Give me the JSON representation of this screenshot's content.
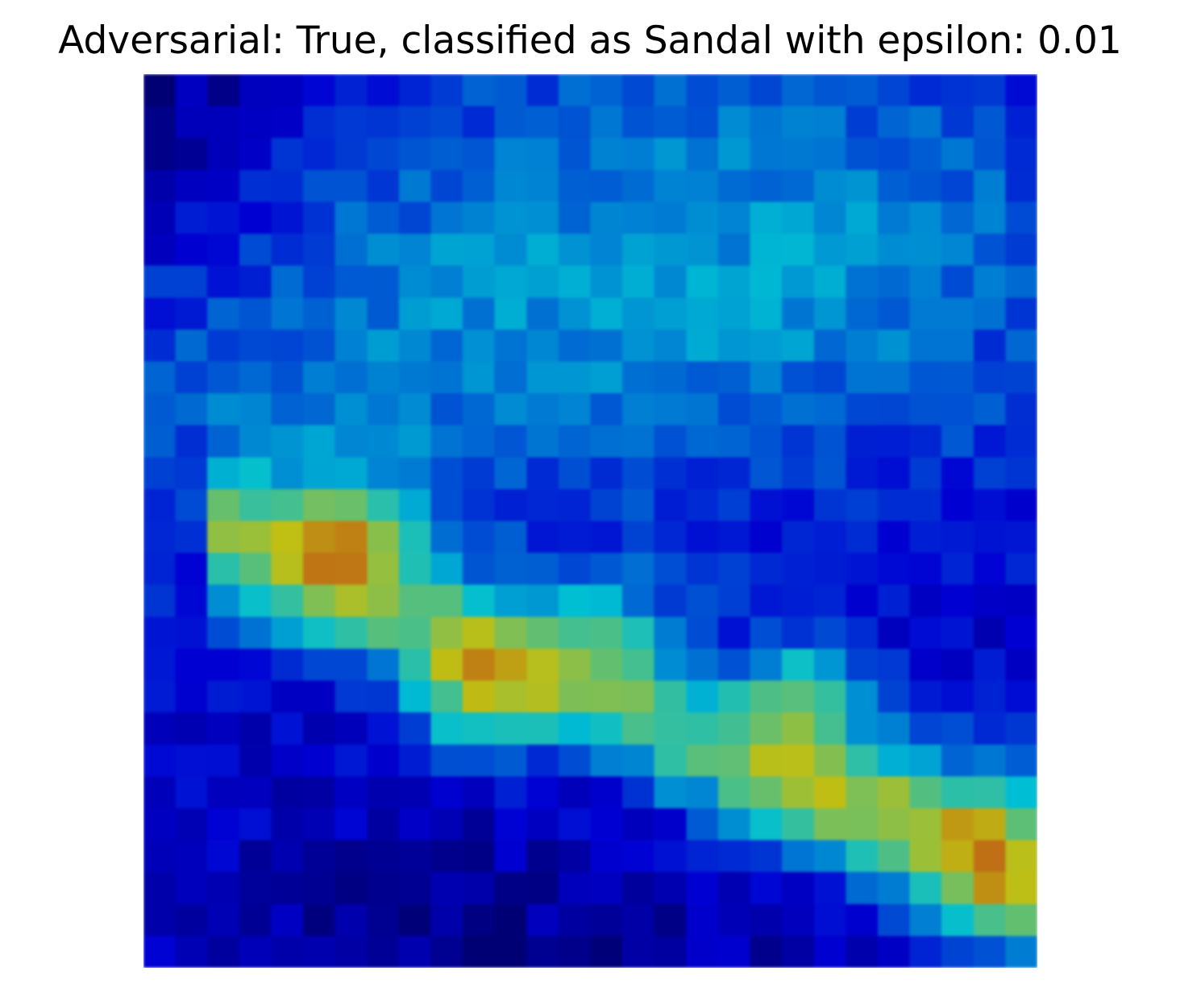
{
  "figure": {
    "title": "Adversarial: True, classified as Sandal with epsilon: 0.01"
  },
  "image": {
    "description_name": "adversarial-saliency-heatmap-overlay",
    "grid_resolution": [
      28,
      28
    ],
    "colormap": {
      "name": "jet",
      "stops": [
        "#00007f",
        "#0000ff",
        "#007fff",
        "#00ffff",
        "#7fff7f",
        "#ffff00",
        "#ff7f00",
        "#ff0000",
        "#7f0000"
      ]
    },
    "blend": {
      "background_color": "#000033",
      "alpha": 0.55
    }
  }
}
